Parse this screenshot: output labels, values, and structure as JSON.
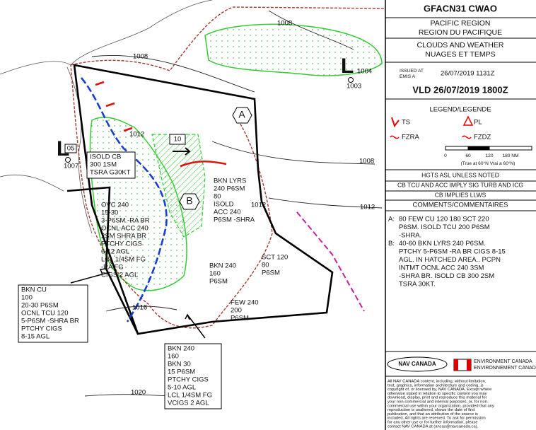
{
  "header": {
    "code": "GFACN31 CWAO",
    "region_en": "PACIFIC REGION",
    "region_fr": "REGION DU PACIFIQUE",
    "product_en": "CLOUDS AND WEATHER",
    "product_fr": "NUAGES ET TEMPS",
    "issued_label_en": "ISSUED AT",
    "issued_label_fr": "EMIS A",
    "issued": "26/07/2019 1131Z",
    "valid": "VLD 26/07/2019 1800Z"
  },
  "legend": {
    "title": "LEGEND/LEGENDE",
    "items": [
      "TS",
      "PL",
      "FZRA",
      "FZDZ"
    ],
    "scale_ticks": [
      "0",
      "60",
      "120",
      "180 NM"
    ],
    "scale_note": "(True at 60°N     Vrai a 60°N)"
  },
  "notes": [
    "HGTS ASL UNLESS NOTED",
    "CB TCU AND ACC IMPLY SIG TURB AND ICG",
    "CB IMPLIES LLWS"
  ],
  "comments": {
    "title": "COMMENTS/COMMENTAIRES",
    "items": [
      {
        "label": "A:",
        "lines": [
          "80 FEW CU 120 180 SCT 220",
          "P6SM. ISOLD TCU 200 P6SM",
          "-SHRA."
        ]
      },
      {
        "label": "B:",
        "lines": [
          "40-60 BKN LYRS 240 P6SM.",
          "PTCHY 5-P6SM -RA BR CIGS 8-15",
          "AGL. IN HATCHED AREA.. PCPN",
          "INTMT OCNL ACC 240 3SM",
          "-SHRA BR. ISOLD CB 300 2SM",
          "TSRA 30KT."
        ]
      }
    ]
  },
  "footer": {
    "nav": "NAV CANADA",
    "env_en": "ENVIRONMENT CANADA",
    "env_fr": "ENVIRONNEMENT CANADA",
    "copyright": [
      "All NAV CANADA content, including, without limitation,",
      "text, graphics, information architecture and coding, is",
      "copyright of, or licensed by, NAV CANADA. Except where",
      "otherwise stated in relation to specific content you may",
      "download, display, print and reproduce this material for",
      "your non-commercial and internal purposes, or, for non-",
      "commercial use within your organization, provided that any",
      "reproduction is unaltered, shows the date of first",
      "publication, and that an attribution of the source is",
      "included. All rights are reserved. To ask for permission",
      "for any other use or for further information, please",
      "contact NAV CANADA at (ancas@navcanada.ca)."
    ]
  },
  "map": {
    "isobars": [
      1008,
      1008,
      1004,
      1012,
      1012,
      1012,
      1008,
      1016,
      1020
    ],
    "pressure_systems": [
      {
        "symbol": "L",
        "speed": "05",
        "value": 1007
      },
      {
        "symbol": "L",
        "value": 1003
      }
    ],
    "movement": "10",
    "areas": [
      "A",
      "B"
    ],
    "labels": [
      {
        "lines": [
          "ISOLD CB",
          "300 1SM",
          "TSRA G30KT"
        ]
      },
      {
        "lines": [
          "BKN LYRS",
          "240  P6SM",
          "80",
          "ISOLD",
          "ACC 240",
          "P6SM -SHRA"
        ]
      },
      {
        "lines": [
          "OVC 240",
          "15-30",
          "3-P6SM -RA BR",
          "OCNL ACC 240",
          "2SM SHRA BR",
          "PTCHY CIGS",
          "6-12 AGL",
          "LCL 1/4SM FG",
          "-RA FG",
          "CIGS 2 AGL"
        ]
      },
      {
        "lines": [
          "SCT 120",
          "80",
          "P6SM"
        ]
      },
      {
        "lines": [
          "BKN 240",
          "160",
          "P6SM"
        ]
      },
      {
        "lines": [
          "FEW 240",
          "200",
          "P6SM"
        ]
      },
      {
        "lines": [
          "BKN CU",
          "100",
          "20-30  P6SM",
          "OCNL TCU 120",
          "5-P6SM -SHRA BR",
          "PTCHY CIGS",
          "8-15 AGL"
        ]
      },
      {
        "lines": [
          "BKN 240",
          "160",
          "BKN 30",
          "15  P6SM",
          "PTCHY CIGS",
          "5-10 AGL",
          "LCL 1/4SM FG",
          "VCIGS 2 AGL"
        ]
      }
    ]
  }
}
